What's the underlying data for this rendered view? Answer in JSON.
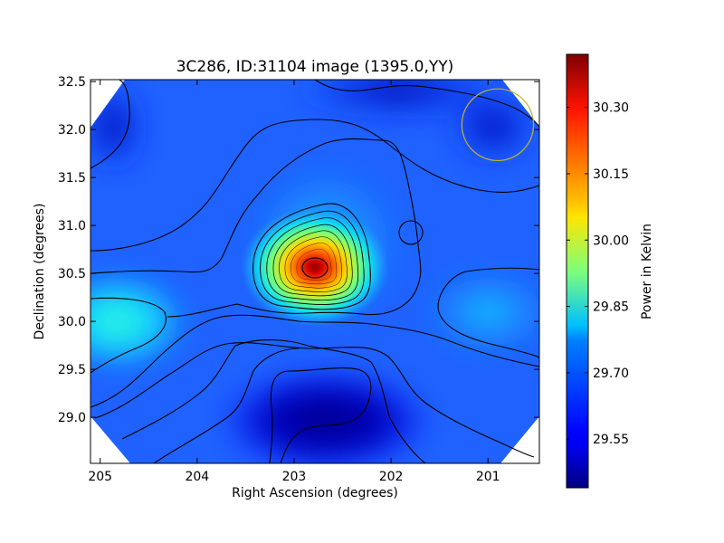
{
  "chart_data": {
    "type": "heatmap",
    "title": "3C286, ID:31104 image (1395.0,YY)",
    "xlabel": "Right Ascension (degrees)",
    "ylabel": "Declination (degrees)",
    "xlim": [
      205.1,
      200.47
    ],
    "ylim": [
      28.52,
      32.52
    ],
    "x_ticks": [
      205,
      204,
      203,
      202,
      201
    ],
    "x_tick_labels": [
      "205",
      "204",
      "203",
      "202",
      "201"
    ],
    "y_ticks": [
      29.0,
      29.5,
      30.0,
      30.5,
      31.0,
      31.5,
      32.0,
      32.5
    ],
    "y_tick_labels": [
      "29.0",
      "29.5",
      "30.0",
      "30.5",
      "31.0",
      "31.5",
      "32.0",
      "32.5"
    ],
    "colorbar": {
      "label": "Power in Kelvin",
      "vmin": 29.44,
      "vmax": 30.42,
      "ticks": [
        29.55,
        29.7,
        29.85,
        30.0,
        30.15,
        30.3
      ],
      "tick_labels": [
        "29.55",
        "29.70",
        "29.85",
        "30.00",
        "30.15",
        "30.30"
      ],
      "colormap": "jet"
    },
    "peak": {
      "ra": 202.75,
      "dec": 30.55,
      "value": 30.42
    },
    "beam_circle": {
      "ra": 200.9,
      "dec": 32.05,
      "radius_deg": 0.37,
      "color": "#c8b428"
    },
    "grid": false
  }
}
